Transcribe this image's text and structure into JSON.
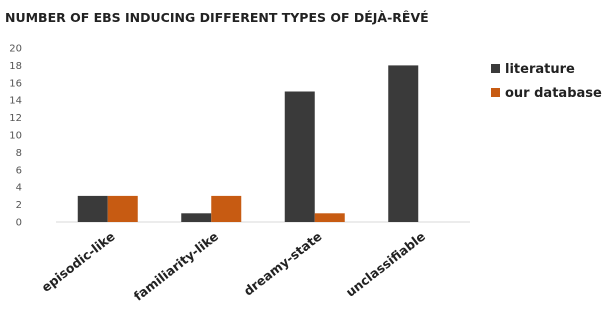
{
  "chart_data": {
    "type": "bar",
    "title": "NUMBER OF EBS INDUCING DIFFERENT TYPES OF DÉJÀ-RÊVÉ",
    "xlabel": "",
    "ylabel": "",
    "categories": [
      "episodic-like",
      "familiarity-like",
      "dreamy-state",
      "unclassifiable"
    ],
    "series": [
      {
        "name": "literature",
        "values": [
          3,
          1,
          15,
          18
        ],
        "color": "#3a3a3a"
      },
      {
        "name": "our database",
        "values": [
          3,
          3,
          1,
          0
        ],
        "color": "#c75b12"
      }
    ],
    "ylim": [
      0,
      20
    ],
    "yticks": [
      0,
      2,
      4,
      6,
      8,
      10,
      12,
      14,
      16,
      18,
      20
    ],
    "grid": false,
    "legend": "right"
  }
}
